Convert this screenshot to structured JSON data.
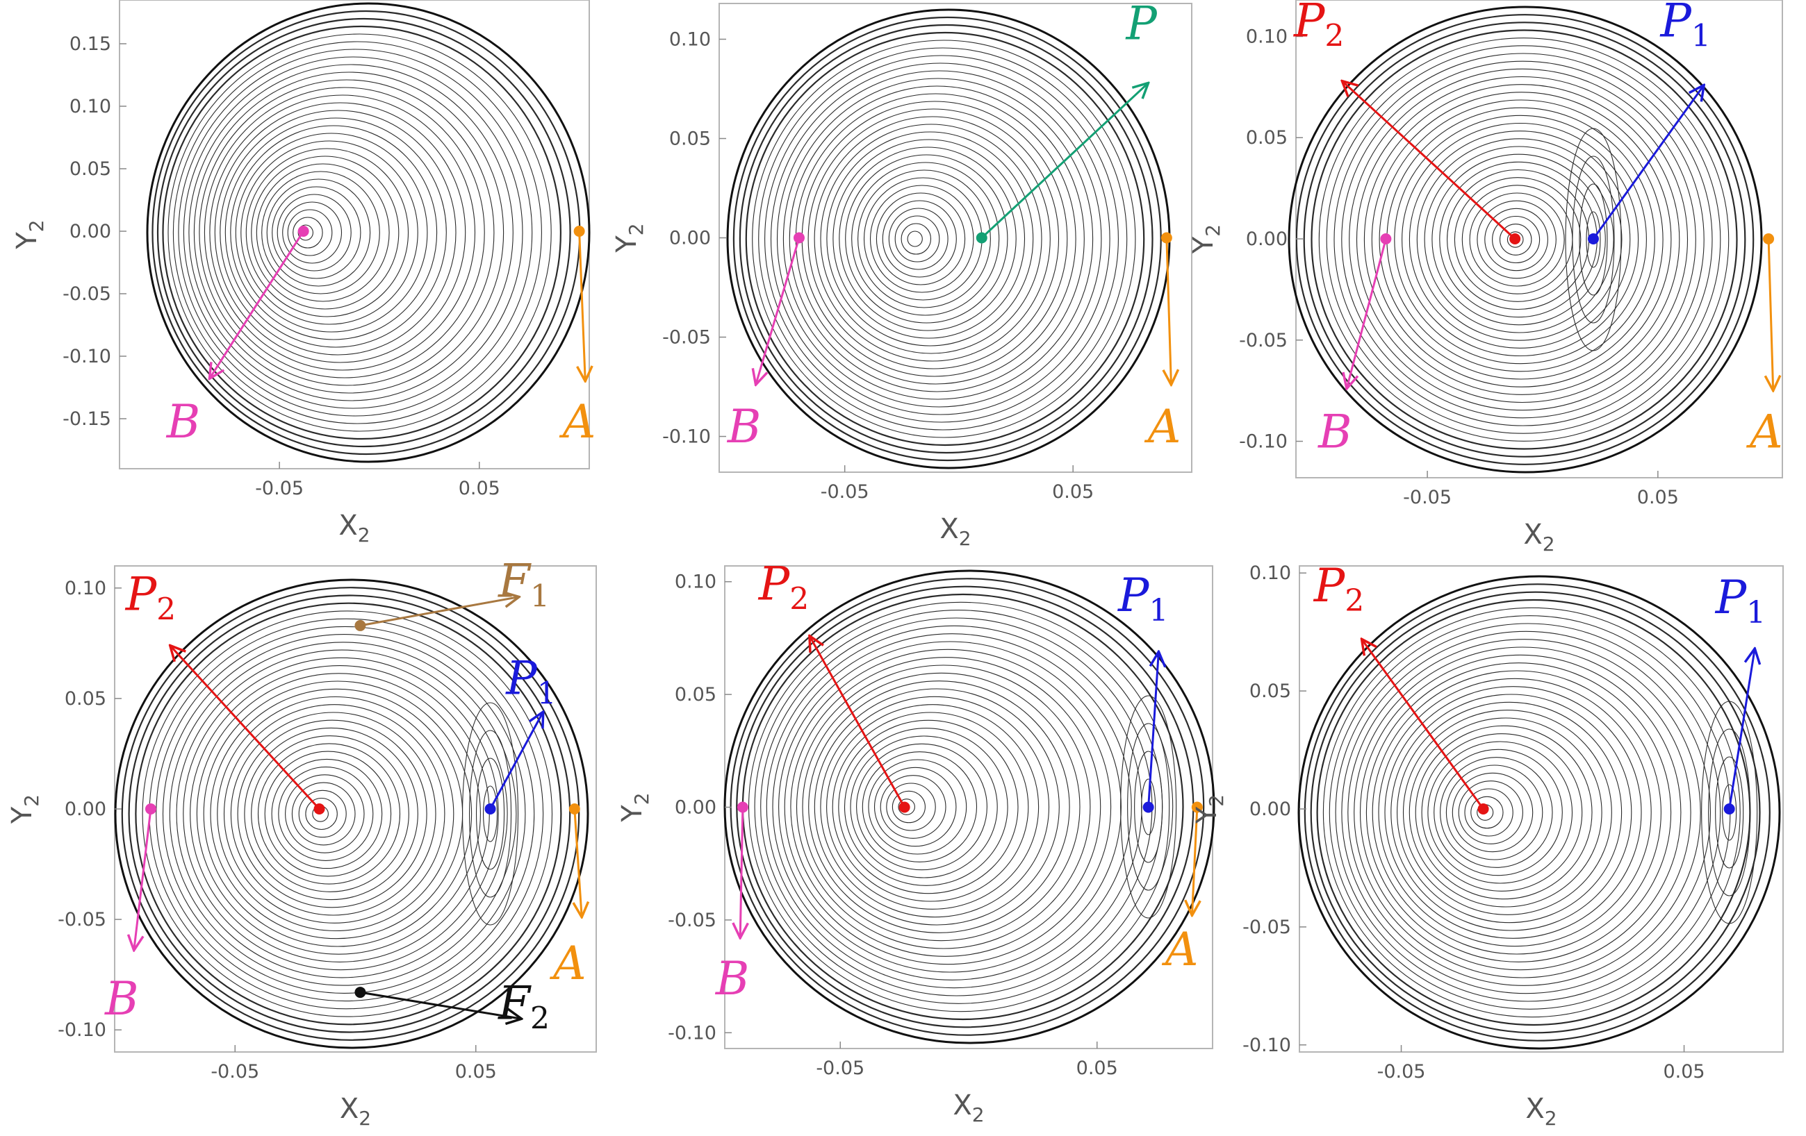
{
  "figure": {
    "colors": {
      "A": "#F2900E",
      "B": "#E63FB4",
      "P": "#13A074",
      "P1": "#1A1ADB",
      "P2": "#E51414",
      "F1": "#A87840",
      "F2": "#111111",
      "contour": "#2a2a2a"
    }
  },
  "chart_data": [
    {
      "type": "contour",
      "id": "panel-1",
      "xlabel": "X",
      "xlabel_sub": "2",
      "ylabel": "Y",
      "ylabel_sub": "2",
      "xlim": [
        -0.13,
        0.105
      ],
      "ylim": [
        -0.19,
        0.185
      ],
      "xticks": [
        "-0.05",
        "0.05"
      ],
      "xtick_values": [
        -0.05,
        0.05
      ],
      "yticks": [
        "0.15",
        "0.10",
        "0.05",
        "0.00",
        "-0.05",
        "-0.10",
        "-0.15"
      ],
      "ytick_values": [
        0.15,
        0.1,
        0.05,
        0.0,
        -0.05,
        -0.1,
        -0.15
      ],
      "points": [
        {
          "name": "B",
          "x": -0.038,
          "y": 0.0,
          "color_key": "B"
        },
        {
          "name": "A",
          "x": 0.1,
          "y": 0.0,
          "color_key": "A"
        }
      ],
      "labels": [
        {
          "text": "B",
          "sub": "",
          "color_key": "B",
          "from": [
            -0.038,
            0.0
          ],
          "to": [
            -0.085,
            -0.118
          ],
          "at": [
            -0.098,
            -0.165
          ]
        },
        {
          "text": "A",
          "sub": "",
          "color_key": "A",
          "from": [
            0.1,
            0.0
          ],
          "to": [
            0.103,
            -0.12
          ],
          "at": [
            0.1,
            -0.165
          ]
        }
      ]
    },
    {
      "type": "contour",
      "id": "panel-2",
      "xlabel": "X",
      "xlabel_sub": "2",
      "ylabel": "Y",
      "ylabel_sub": "2",
      "xlim": [
        -0.105,
        0.102
      ],
      "ylim": [
        -0.118,
        0.118
      ],
      "xticks": [
        "-0.05",
        "0.05"
      ],
      "xtick_values": [
        -0.05,
        0.05
      ],
      "yticks": [
        "0.10",
        "0.05",
        "0.00",
        "-0.05",
        "-0.10"
      ],
      "ytick_values": [
        0.1,
        0.05,
        0.0,
        -0.05,
        -0.1
      ],
      "points": [
        {
          "name": "B",
          "x": -0.07,
          "y": 0.0,
          "color_key": "B"
        },
        {
          "name": "P",
          "x": 0.01,
          "y": 0.0,
          "color_key": "P"
        },
        {
          "name": "A",
          "x": 0.091,
          "y": 0.0,
          "color_key": "A"
        }
      ],
      "labels": [
        {
          "text": "B",
          "sub": "",
          "color_key": "B",
          "from": [
            -0.07,
            0.0
          ],
          "to": [
            -0.089,
            -0.074
          ],
          "at": [
            -0.094,
            -0.103
          ]
        },
        {
          "text": "P",
          "sub": "",
          "color_key": "P",
          "from": [
            0.01,
            0.0
          ],
          "to": [
            0.083,
            0.078
          ],
          "at": [
            0.08,
            0.1
          ]
        },
        {
          "text": "A",
          "sub": "",
          "color_key": "A",
          "from": [
            0.091,
            0.0
          ],
          "to": [
            0.093,
            -0.074
          ],
          "at": [
            0.09,
            -0.103
          ]
        }
      ]
    },
    {
      "type": "contour",
      "id": "panel-3",
      "xlabel": "X",
      "xlabel_sub": "2",
      "ylabel": "Y",
      "ylabel_sub": "2",
      "xlim": [
        -0.107,
        0.104
      ],
      "ylim": [
        -0.118,
        0.118
      ],
      "xticks": [
        "-0.05",
        "0.05"
      ],
      "xtick_values": [
        -0.05,
        0.05
      ],
      "yticks": [
        "0.10",
        "0.05",
        "0.00",
        "-0.05",
        "-0.10"
      ],
      "ytick_values": [
        0.1,
        0.05,
        0.0,
        -0.05,
        -0.1
      ],
      "points": [
        {
          "name": "B",
          "x": -0.068,
          "y": 0.0,
          "color_key": "B"
        },
        {
          "name": "P2",
          "x": -0.012,
          "y": 0.0,
          "color_key": "P2"
        },
        {
          "name": "P1",
          "x": 0.022,
          "y": 0.0,
          "color_key": "P1"
        },
        {
          "name": "A",
          "x": 0.098,
          "y": 0.0,
          "color_key": "A"
        }
      ],
      "labels": [
        {
          "text": "B",
          "sub": "",
          "color_key": "B",
          "from": [
            -0.068,
            0.0
          ],
          "to": [
            -0.085,
            -0.074
          ],
          "at": [
            -0.09,
            -0.103
          ]
        },
        {
          "text": "P",
          "sub": "2",
          "color_key": "P2",
          "from": [
            -0.012,
            0.0
          ],
          "to": [
            -0.087,
            0.078
          ],
          "at": [
            -0.097,
            0.1
          ]
        },
        {
          "text": "P",
          "sub": "1",
          "color_key": "P1",
          "from": [
            0.022,
            0.0
          ],
          "to": [
            0.07,
            0.076
          ],
          "at": [
            0.062,
            0.1
          ]
        },
        {
          "text": "A",
          "sub": "",
          "color_key": "A",
          "from": [
            0.098,
            0.0
          ],
          "to": [
            0.1,
            -0.075
          ],
          "at": [
            0.097,
            -0.103
          ]
        }
      ]
    },
    {
      "type": "contour",
      "id": "panel-4",
      "xlabel": "X",
      "xlabel_sub": "2",
      "ylabel": "Y",
      "ylabel_sub": "2",
      "xlim": [
        -0.1,
        0.1
      ],
      "ylim": [
        -0.11,
        0.11
      ],
      "xticks": [
        "-0.05",
        "0.05"
      ],
      "xtick_values": [
        -0.05,
        0.05
      ],
      "yticks": [
        "0.10",
        "0.05",
        "0.00",
        "-0.05",
        "-0.10"
      ],
      "ytick_values": [
        0.1,
        0.05,
        0.0,
        -0.05,
        -0.1
      ],
      "points": [
        {
          "name": "B",
          "x": -0.085,
          "y": 0.0,
          "color_key": "B"
        },
        {
          "name": "P2",
          "x": -0.015,
          "y": 0.0,
          "color_key": "P2"
        },
        {
          "name": "F1",
          "x": 0.002,
          "y": 0.083,
          "color_key": "F1"
        },
        {
          "name": "P1",
          "x": 0.056,
          "y": 0.0,
          "color_key": "P1"
        },
        {
          "name": "F2",
          "x": 0.002,
          "y": -0.083,
          "color_key": "F2"
        },
        {
          "name": "A",
          "x": 0.091,
          "y": 0.0,
          "color_key": "A"
        }
      ],
      "labels": [
        {
          "text": "B",
          "sub": "",
          "color_key": "B",
          "from": [
            -0.085,
            0.0
          ],
          "to": [
            -0.092,
            -0.064
          ],
          "at": [
            -0.097,
            -0.093
          ]
        },
        {
          "text": "P",
          "sub": "2",
          "color_key": "P2",
          "from": [
            -0.015,
            0.0
          ],
          "to": [
            -0.077,
            0.074
          ],
          "at": [
            -0.085,
            0.09
          ]
        },
        {
          "text": "F",
          "sub": "1",
          "color_key": "F1",
          "from": [
            0.002,
            0.083
          ],
          "to": [
            0.068,
            0.096
          ],
          "at": [
            0.07,
            0.096
          ]
        },
        {
          "text": "P",
          "sub": "1",
          "color_key": "P1",
          "from": [
            0.056,
            0.0
          ],
          "to": [
            0.078,
            0.044
          ],
          "at": [
            0.073,
            0.052
          ]
        },
        {
          "text": "F",
          "sub": "2",
          "color_key": "F2",
          "from": [
            0.002,
            -0.083
          ],
          "to": [
            0.069,
            -0.095
          ],
          "at": [
            0.07,
            -0.095
          ]
        },
        {
          "text": "A",
          "sub": "",
          "color_key": "A",
          "from": [
            0.091,
            0.0
          ],
          "to": [
            0.094,
            -0.049
          ],
          "at": [
            0.089,
            -0.077
          ]
        }
      ]
    },
    {
      "type": "contour",
      "id": "panel-5",
      "xlabel": "X",
      "xlabel_sub": "2",
      "ylabel": "Y",
      "ylabel_sub": "2",
      "xlim": [
        -0.095,
        0.095
      ],
      "ylim": [
        -0.107,
        0.107
      ],
      "xticks": [
        "-0.05",
        "0.05"
      ],
      "xtick_values": [
        -0.05,
        0.05
      ],
      "yticks": [
        "0.10",
        "0.05",
        "0.00",
        "-0.05",
        "-0.10"
      ],
      "ytick_values": [
        0.1,
        0.05,
        0.0,
        -0.05,
        -0.1
      ],
      "points": [
        {
          "name": "B",
          "x": -0.088,
          "y": 0.0,
          "color_key": "B"
        },
        {
          "name": "P2",
          "x": -0.025,
          "y": 0.0,
          "color_key": "P2"
        },
        {
          "name": "P1",
          "x": 0.07,
          "y": 0.0,
          "color_key": "P1"
        },
        {
          "name": "A",
          "x": 0.089,
          "y": 0.0,
          "color_key": "A"
        }
      ],
      "labels": [
        {
          "text": "B",
          "sub": "",
          "color_key": "B",
          "from": [
            -0.088,
            0.0
          ],
          "to": [
            -0.089,
            -0.058
          ],
          "at": [
            -0.092,
            -0.083
          ]
        },
        {
          "text": "P",
          "sub": "2",
          "color_key": "P2",
          "from": [
            -0.025,
            0.0
          ],
          "to": [
            -0.062,
            0.076
          ],
          "at": [
            -0.072,
            0.092
          ]
        },
        {
          "text": "P",
          "sub": "1",
          "color_key": "P1",
          "from": [
            0.07,
            0.0
          ],
          "to": [
            0.074,
            0.069
          ],
          "at": [
            0.068,
            0.087
          ]
        },
        {
          "text": "A",
          "sub": "",
          "color_key": "A",
          "from": [
            0.089,
            0.0
          ],
          "to": [
            0.087,
            -0.048
          ],
          "at": [
            0.083,
            -0.07
          ]
        }
      ]
    },
    {
      "type": "contour",
      "id": "panel-6",
      "xlabel": "X",
      "xlabel_sub": "2",
      "ylabel": "Y",
      "ylabel_sub": "2",
      "xlim": [
        -0.086,
        0.085
      ],
      "ylim": [
        -0.103,
        0.103
      ],
      "xticks": [
        "-0.05",
        "0.05"
      ],
      "xtick_values": [
        -0.05,
        0.05
      ],
      "yticks": [
        "0.10",
        "0.05",
        "0.00",
        "-0.05",
        "-0.10"
      ],
      "ytick_values": [
        0.1,
        0.05,
        0.0,
        -0.05,
        -0.1
      ],
      "points": [
        {
          "name": "P2",
          "x": -0.021,
          "y": 0.0,
          "color_key": "P2"
        },
        {
          "name": "P1",
          "x": 0.066,
          "y": 0.0,
          "color_key": "P1"
        }
      ],
      "labels": [
        {
          "text": "P",
          "sub": "2",
          "color_key": "P2",
          "from": [
            -0.021,
            0.0
          ],
          "to": [
            -0.064,
            0.072
          ],
          "at": [
            -0.072,
            0.088
          ]
        },
        {
          "text": "P",
          "sub": "1",
          "color_key": "P1",
          "from": [
            0.066,
            0.0
          ],
          "to": [
            0.075,
            0.068
          ],
          "at": [
            0.07,
            0.083
          ]
        }
      ]
    }
  ]
}
